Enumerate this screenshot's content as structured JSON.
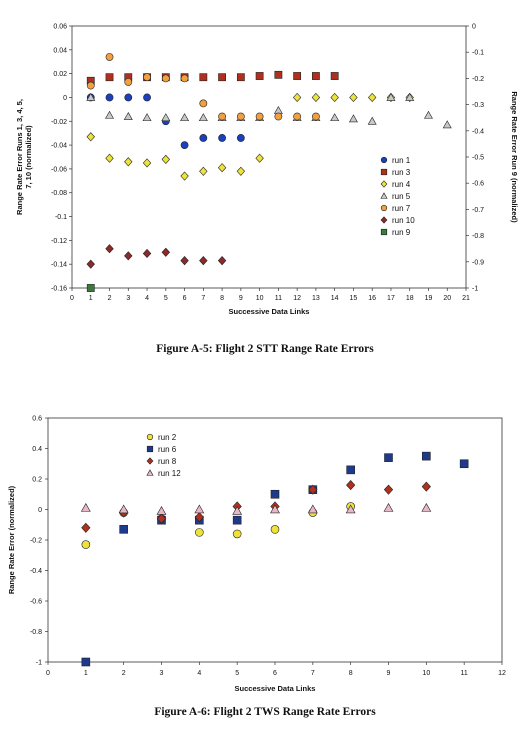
{
  "chart_data": [
    {
      "type": "scatter",
      "title": "",
      "caption": "Figure A-5:  Flight 2 STT Range Rate Errors",
      "xlabel": "Successive Data Links",
      "ylabel_left": "Range Rate Error Runs 1, 3, 4, 5, 7, 10 (normalized)",
      "ylabel_left_line1": "Range Rate Error Runs 1, 3, 4, 5,",
      "ylabel_left_line2": "7, 10 (normalized)",
      "ylabel_right": "Range Rate Error Run 9  (normalized)",
      "xlim": [
        0,
        21
      ],
      "ylim_left": [
        -0.16,
        0.06
      ],
      "ylim_right": [
        -1,
        0
      ],
      "x_ticks": [
        "0",
        "1",
        "2",
        "3",
        "4",
        "5",
        "6",
        "7",
        "8",
        "9",
        "10",
        "11",
        "12",
        "13",
        "14",
        "15",
        "16",
        "17",
        "18",
        "19",
        "20",
        "21"
      ],
      "y_left_ticks": [
        "0.06",
        "0.04",
        "0.02",
        "0",
        "-0.02",
        "-0.04",
        "-0.06",
        "-0.08",
        "-0.1",
        "-0.12",
        "-0.14",
        "-0.16"
      ],
      "y_right_ticks": [
        "0",
        "-0.1",
        "-0.2",
        "-0.3",
        "-0.4",
        "-0.5",
        "-0.6",
        "-0.7",
        "-0.8",
        "-0.9",
        "-1"
      ],
      "legend_position": "right-middle",
      "grid": false,
      "series": [
        {
          "name": "run 1",
          "marker": "circle",
          "color": "#1a3fbf",
          "axis": "left",
          "x": [
            1,
            2,
            3,
            4,
            5,
            6,
            7,
            8,
            9
          ],
          "y": [
            0.0,
            0.0,
            0.0,
            0.0,
            -0.02,
            -0.04,
            -0.034,
            -0.034,
            -0.034
          ]
        },
        {
          "name": "run 3",
          "marker": "square",
          "color": "#b03020",
          "axis": "left",
          "x": [
            1,
            2,
            3,
            4,
            5,
            6,
            7,
            8,
            9,
            10,
            11,
            12,
            13,
            14
          ],
          "y": [
            0.014,
            0.017,
            0.017,
            0.017,
            0.017,
            0.017,
            0.017,
            0.017,
            0.017,
            0.018,
            0.019,
            0.018,
            0.018,
            0.018
          ]
        },
        {
          "name": "run 4",
          "marker": "diamond",
          "color": "#ece23a",
          "axis": "left",
          "x": [
            1,
            2,
            3,
            4,
            5,
            6,
            7,
            8,
            9,
            10,
            12,
            13,
            14,
            15,
            16,
            17,
            18
          ],
          "y": [
            -0.033,
            -0.051,
            -0.054,
            -0.055,
            -0.052,
            -0.066,
            -0.062,
            -0.059,
            -0.062,
            -0.051,
            0.0,
            0.0,
            0.0,
            0.0,
            0.0,
            0.0,
            0.0
          ]
        },
        {
          "name": "run 5",
          "marker": "triangle",
          "color": "#c8c8c8",
          "axis": "left",
          "x": [
            1,
            2,
            3,
            4,
            5,
            6,
            7,
            8,
            9,
            10,
            11,
            12,
            13,
            14,
            15,
            16,
            17,
            18,
            19,
            20
          ],
          "y": [
            0.0,
            -0.015,
            -0.016,
            -0.017,
            -0.017,
            -0.017,
            -0.017,
            -0.017,
            -0.017,
            -0.017,
            -0.011,
            -0.017,
            -0.017,
            -0.017,
            -0.018,
            -0.02,
            0.0,
            0.0,
            -0.015,
            -0.023
          ]
        },
        {
          "name": "run 7",
          "marker": "circle",
          "color": "#f0a040",
          "axis": "left",
          "x": [
            1,
            2,
            3,
            4,
            5,
            6,
            7,
            8,
            9,
            10,
            11,
            12,
            13
          ],
          "y": [
            0.01,
            0.034,
            0.013,
            0.017,
            0.016,
            0.016,
            -0.005,
            -0.016,
            -0.016,
            -0.016,
            -0.016,
            -0.016,
            -0.016
          ]
        },
        {
          "name": "run 10",
          "marker": "diamond",
          "color": "#8b2a2a",
          "axis": "left",
          "x": [
            1,
            2,
            3,
            4,
            5,
            6,
            7,
            8
          ],
          "y": [
            -0.14,
            -0.127,
            -0.133,
            -0.131,
            -0.13,
            -0.137,
            -0.137,
            -0.137
          ]
        },
        {
          "name": "run 9",
          "marker": "square",
          "color": "#3a7a3a",
          "axis": "right",
          "x": [
            1
          ],
          "y": [
            -1.0
          ]
        }
      ]
    },
    {
      "type": "scatter",
      "title": "",
      "caption": "Figure A-6:  Flight 2 TWS Range Rate Errors",
      "xlabel": "Successive Data Links",
      "ylabel": "Range Rate Error (normalized)",
      "xlim": [
        0,
        12
      ],
      "ylim": [
        -1,
        0.6
      ],
      "x_ticks": [
        "0",
        "1",
        "2",
        "3",
        "4",
        "5",
        "6",
        "7",
        "8",
        "9",
        "10",
        "11",
        "12"
      ],
      "y_ticks": [
        "0.6",
        "0.4",
        "0.2",
        "0",
        "-0.2",
        "-0.4",
        "-0.6",
        "-0.8",
        "-1"
      ],
      "legend_position": "top-left",
      "grid": false,
      "series": [
        {
          "name": "run 2",
          "marker": "circle",
          "color": "#ece23a",
          "x": [
            1,
            2,
            3,
            4,
            5,
            6,
            7,
            8
          ],
          "y": [
            -0.23,
            -0.02,
            -0.06,
            -0.15,
            -0.16,
            -0.13,
            -0.02,
            0.02
          ]
        },
        {
          "name": "run 6",
          "marker": "square",
          "color": "#1f3a8c",
          "x": [
            1,
            2,
            3,
            4,
            5,
            6,
            7,
            8,
            9,
            10,
            11
          ],
          "y": [
            -1.0,
            -0.13,
            -0.07,
            -0.07,
            -0.07,
            0.1,
            0.13,
            0.26,
            0.34,
            0.35,
            0.3
          ]
        },
        {
          "name": "run 8",
          "marker": "diamond",
          "color": "#b03020",
          "x": [
            1,
            2,
            3,
            4,
            5,
            6,
            7,
            8,
            9,
            10
          ],
          "y": [
            -0.12,
            -0.02,
            -0.06,
            -0.05,
            0.02,
            0.02,
            0.13,
            0.16,
            0.13,
            0.15
          ]
        },
        {
          "name": "run 12",
          "marker": "triangle",
          "color": "#e8b8c8",
          "x": [
            1,
            2,
            3,
            4,
            5,
            6,
            7,
            8,
            9,
            10
          ],
          "y": [
            0.01,
            0.0,
            -0.01,
            0.0,
            -0.01,
            0.0,
            0.0,
            0.0,
            0.01,
            0.01
          ]
        }
      ]
    }
  ]
}
